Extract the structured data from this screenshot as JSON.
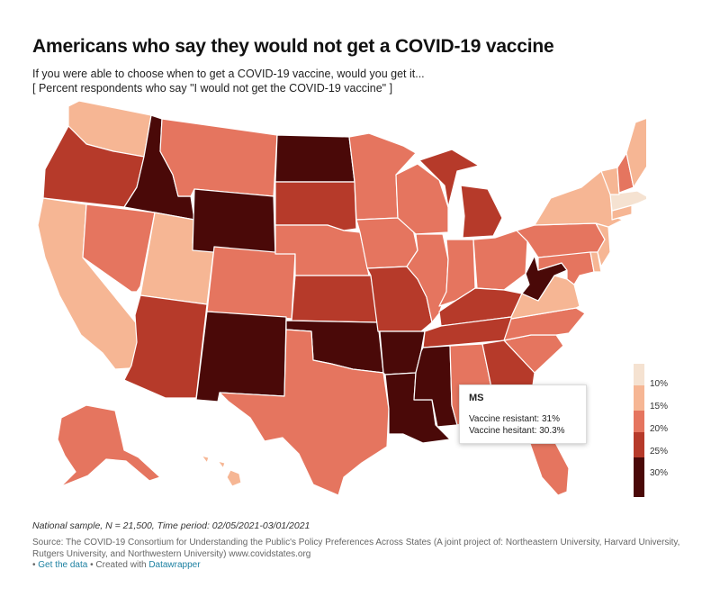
{
  "header": {
    "title": "Americans who say they would not get a COVID-19 vaccine",
    "subtitle_line1": "If you were able to choose when to get a COVID-19 vaccine, would you get it...",
    "subtitle_line2": "[ Percent respondents who say \"I would not get the COVID-19 vaccine\" ]"
  },
  "colors": {
    "c10": "#f5e2d1",
    "c15": "#f6b694",
    "c20": "#e5755f",
    "c25": "#b63a2a",
    "c30": "#4a0908"
  },
  "legend": {
    "labels": [
      "10%",
      "15%",
      "20%",
      "25%",
      "30%"
    ]
  },
  "tooltip": {
    "state": "MS",
    "line1": "Vaccine resistant: 31%",
    "line2": "Vaccine hesitant: 30.3%"
  },
  "footer": {
    "notes": "National sample, N = 21,500, Time period: 02/05/2021-03/01/2021",
    "source": "Source: The COVID-19 Consortium for Understanding the Public's Policy Preferences Across States (A joint project of: Northeastern University, Harvard University, Rutgers University, and Northwestern University) www.covidstates.org",
    "get_data": "Get the data",
    "created_with": "Created with",
    "datawrapper": "Datawrapper"
  },
  "map": {
    "states": [
      {
        "id": "WA",
        "level": "c15"
      },
      {
        "id": "OR",
        "level": "c25"
      },
      {
        "id": "CA",
        "level": "c15"
      },
      {
        "id": "ID",
        "level": "c30"
      },
      {
        "id": "NV",
        "level": "c20"
      },
      {
        "id": "UT",
        "level": "c15"
      },
      {
        "id": "AZ",
        "level": "c25"
      },
      {
        "id": "MT",
        "level": "c20"
      },
      {
        "id": "WY",
        "level": "c30"
      },
      {
        "id": "CO",
        "level": "c20"
      },
      {
        "id": "NM",
        "level": "c30"
      },
      {
        "id": "ND",
        "level": "c30"
      },
      {
        "id": "SD",
        "level": "c25"
      },
      {
        "id": "NE",
        "level": "c20"
      },
      {
        "id": "KS",
        "level": "c25"
      },
      {
        "id": "OK",
        "level": "c30"
      },
      {
        "id": "TX",
        "level": "c20"
      },
      {
        "id": "MN",
        "level": "c20"
      },
      {
        "id": "IA",
        "level": "c20"
      },
      {
        "id": "MO",
        "level": "c25"
      },
      {
        "id": "AR",
        "level": "c30"
      },
      {
        "id": "LA",
        "level": "c30"
      },
      {
        "id": "WI",
        "level": "c20"
      },
      {
        "id": "IL",
        "level": "c20"
      },
      {
        "id": "MI",
        "level": "c25"
      },
      {
        "id": "IN",
        "level": "c20"
      },
      {
        "id": "OH",
        "level": "c20"
      },
      {
        "id": "KY",
        "level": "c25"
      },
      {
        "id": "TN",
        "level": "c25"
      },
      {
        "id": "MS",
        "level": "c30"
      },
      {
        "id": "AL",
        "level": "c20"
      },
      {
        "id": "GA",
        "level": "c25"
      },
      {
        "id": "FL",
        "level": "c20"
      },
      {
        "id": "SC",
        "level": "c20"
      },
      {
        "id": "NC",
        "level": "c20"
      },
      {
        "id": "VA",
        "level": "c15"
      },
      {
        "id": "WV",
        "level": "c30"
      },
      {
        "id": "PA",
        "level": "c20"
      },
      {
        "id": "NY",
        "level": "c15"
      },
      {
        "id": "VT",
        "level": "c15"
      },
      {
        "id": "NH",
        "level": "c20"
      },
      {
        "id": "ME",
        "level": "c15"
      },
      {
        "id": "MA",
        "level": "c10"
      },
      {
        "id": "CT",
        "level": "c15"
      },
      {
        "id": "NJ",
        "level": "c15"
      },
      {
        "id": "DE",
        "level": "c15"
      },
      {
        "id": "MD",
        "level": "c20"
      },
      {
        "id": "AK",
        "level": "c20"
      },
      {
        "id": "HI",
        "level": "c15"
      }
    ]
  }
}
